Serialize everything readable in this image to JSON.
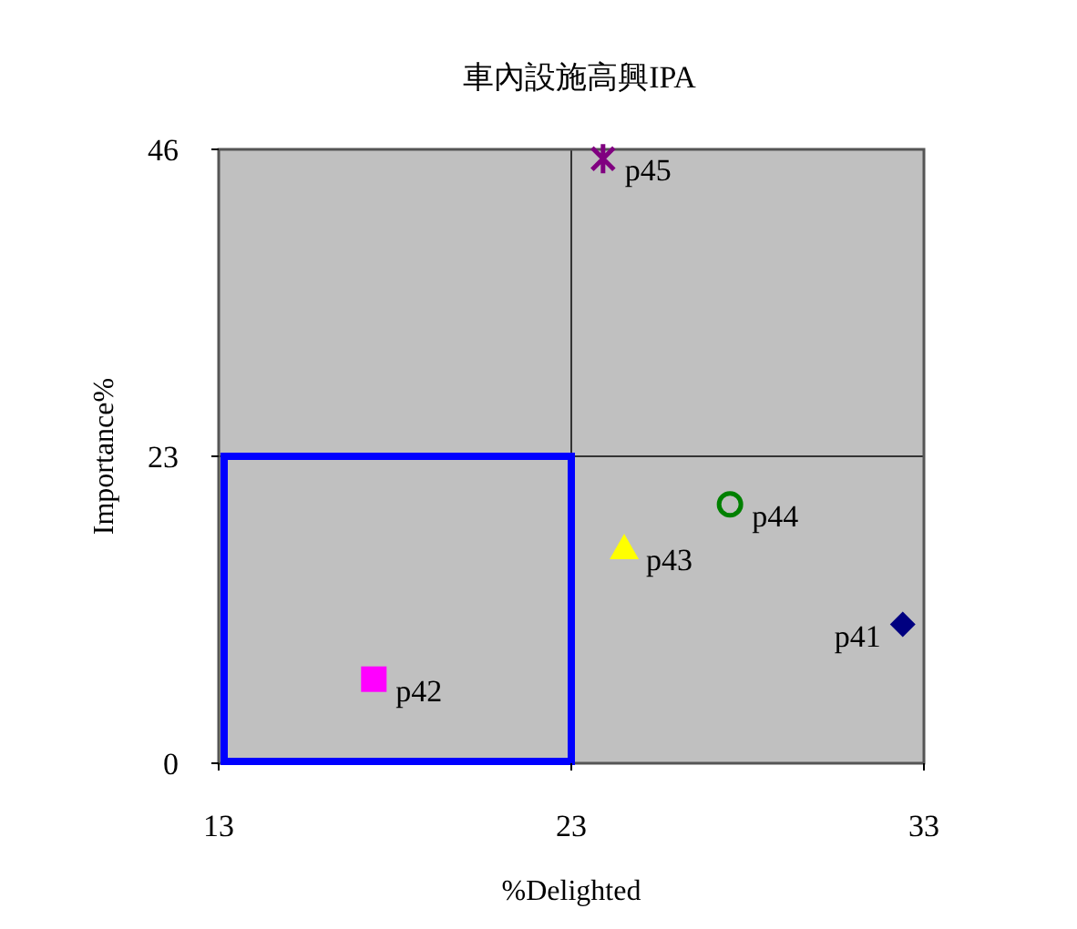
{
  "chart_data": {
    "type": "scatter",
    "title": "車內設施高興IPA",
    "xlabel": "%Delighted",
    "ylabel": "Importance%",
    "xlim": [
      13,
      33
    ],
    "xticks": [
      13,
      23,
      33
    ],
    "ylim": [
      0,
      46
    ],
    "yticks": [
      0,
      23,
      46
    ],
    "grid": true,
    "series": [
      {
        "name": "p41",
        "color": "#000080",
        "marker": "diamond",
        "x": [
          32.4
        ],
        "values": [
          10.4
        ]
      },
      {
        "name": "p42",
        "color": "#ff00ff",
        "marker": "square",
        "x": [
          17.4
        ],
        "values": [
          6.3
        ]
      },
      {
        "name": "p43",
        "color": "#ffff00",
        "marker": "triangle",
        "x": [
          24.5
        ],
        "values": [
          16.1
        ]
      },
      {
        "name": "p44",
        "color": "#008000",
        "marker": "circle",
        "x": [
          27.5
        ],
        "values": [
          19.4
        ]
      },
      {
        "name": "p45",
        "color": "#800080",
        "marker": "cross",
        "x": [
          23.9
        ],
        "values": [
          45.3
        ]
      }
    ]
  }
}
